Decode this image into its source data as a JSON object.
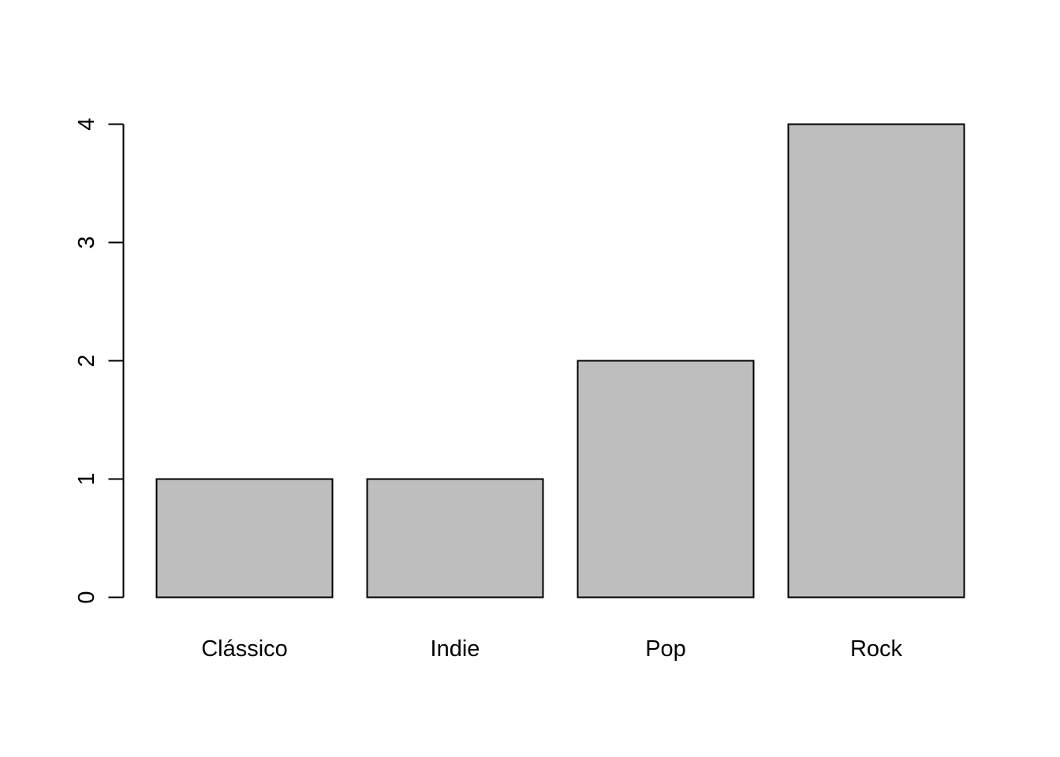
{
  "chart_data": {
    "type": "bar",
    "categories": [
      "Clássico",
      "Indie",
      "Pop",
      "Rock"
    ],
    "values": [
      1,
      1,
      2,
      4
    ],
    "ylim": [
      0,
      4
    ],
    "yticks": [
      0,
      1,
      2,
      3,
      4
    ],
    "title": "",
    "xlabel": "",
    "ylabel": "",
    "grid": false,
    "colors": {
      "bar_fill": "#bebebe",
      "bar_stroke": "#000000",
      "axis": "#000000",
      "background": "#ffffff"
    }
  }
}
